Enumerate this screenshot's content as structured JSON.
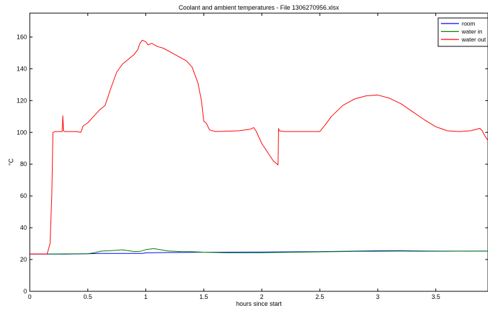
{
  "chart_data": {
    "type": "line",
    "title": "Coolant and ambient temperatures - File 1306270956.xlsx",
    "xlabel": "hours since start",
    "ylabel": "°C",
    "xlim": [
      0,
      3.95
    ],
    "ylim": [
      0,
      175
    ],
    "xticks": [
      0,
      0.5,
      1,
      1.5,
      2,
      2.5,
      3,
      3.5
    ],
    "xtick_labels": [
      "0",
      "0.5",
      "1",
      "1.5",
      "2",
      "2.5",
      "3",
      "3.5"
    ],
    "yticks": [
      0,
      20,
      40,
      60,
      80,
      100,
      120,
      140,
      160
    ],
    "ytick_labels": [
      "0",
      "20",
      "40",
      "60",
      "80",
      "100",
      "120",
      "140",
      "160"
    ],
    "grid": false,
    "legend_position": "top-right",
    "series": [
      {
        "name": "room",
        "color": "#0000ff",
        "x": [
          0,
          0.3,
          0.5,
          0.6,
          0.97,
          1.0,
          1.2,
          1.5,
          2.0,
          2.5,
          2.8,
          3.0,
          3.2,
          3.4,
          3.6,
          3.8,
          3.95
        ],
        "y": [
          23.4,
          23.4,
          23.6,
          23.8,
          23.8,
          24.2,
          24.4,
          24.6,
          24.7,
          25.0,
          25.3,
          25.5,
          25.6,
          25.4,
          25.3,
          25.3,
          25.3
        ]
      },
      {
        "name": "water in",
        "color": "#008000",
        "x": [
          0,
          0.2,
          0.4,
          0.5,
          0.55,
          0.62,
          0.7,
          0.8,
          0.85,
          0.9,
          0.95,
          1.0,
          1.07,
          1.12,
          1.2,
          1.3,
          1.4,
          1.5,
          1.7,
          2.0,
          2.3,
          2.5,
          2.8,
          3.0,
          3.2,
          3.4,
          3.6,
          3.8,
          3.95
        ],
        "y": [
          23.5,
          23.5,
          23.6,
          23.7,
          24.2,
          25.3,
          25.6,
          26.1,
          25.6,
          25.0,
          25.1,
          26.2,
          26.9,
          26.2,
          25.4,
          25.0,
          24.9,
          24.6,
          24.3,
          24.3,
          24.6,
          24.8,
          25.1,
          25.2,
          25.3,
          25.2,
          25.2,
          25.3,
          25.3
        ]
      },
      {
        "name": "water out",
        "color": "#ff0000",
        "x": [
          0,
          0.15,
          0.175,
          0.19,
          0.2,
          0.22,
          0.28,
          0.285,
          0.29,
          0.3,
          0.4,
          0.44,
          0.46,
          0.5,
          0.55,
          0.6,
          0.65,
          0.7,
          0.75,
          0.8,
          0.9,
          0.93,
          0.95,
          0.97,
          1.0,
          1.02,
          1.05,
          1.1,
          1.15,
          1.2,
          1.3,
          1.35,
          1.4,
          1.45,
          1.48,
          1.5,
          1.52,
          1.55,
          1.6,
          1.8,
          1.9,
          1.93,
          1.95,
          2.0,
          2.1,
          2.14,
          2.145,
          2.15,
          2.2,
          2.5,
          2.55,
          2.6,
          2.7,
          2.8,
          2.9,
          3.0,
          3.1,
          3.2,
          3.3,
          3.4,
          3.5,
          3.6,
          3.7,
          3.8,
          3.88,
          3.9,
          3.93,
          3.95
        ],
        "y": [
          23.5,
          23.5,
          30,
          60,
          100,
          100.5,
          100.5,
          110.5,
          101,
          100.5,
          100.5,
          100,
          104,
          106,
          110,
          114,
          117,
          128,
          138,
          143,
          149,
          152,
          156,
          158,
          157,
          155,
          156,
          154,
          153,
          151,
          147,
          145,
          141,
          131,
          120,
          107,
          106,
          101.5,
          100.5,
          101,
          102,
          103,
          101,
          93,
          82,
          79.5,
          102.5,
          101,
          100.5,
          100.5,
          105,
          110,
          117,
          121,
          123,
          123.5,
          121.5,
          118,
          113,
          108,
          103.5,
          101,
          100.5,
          101,
          102.5,
          101,
          97,
          95
        ]
      }
    ]
  }
}
